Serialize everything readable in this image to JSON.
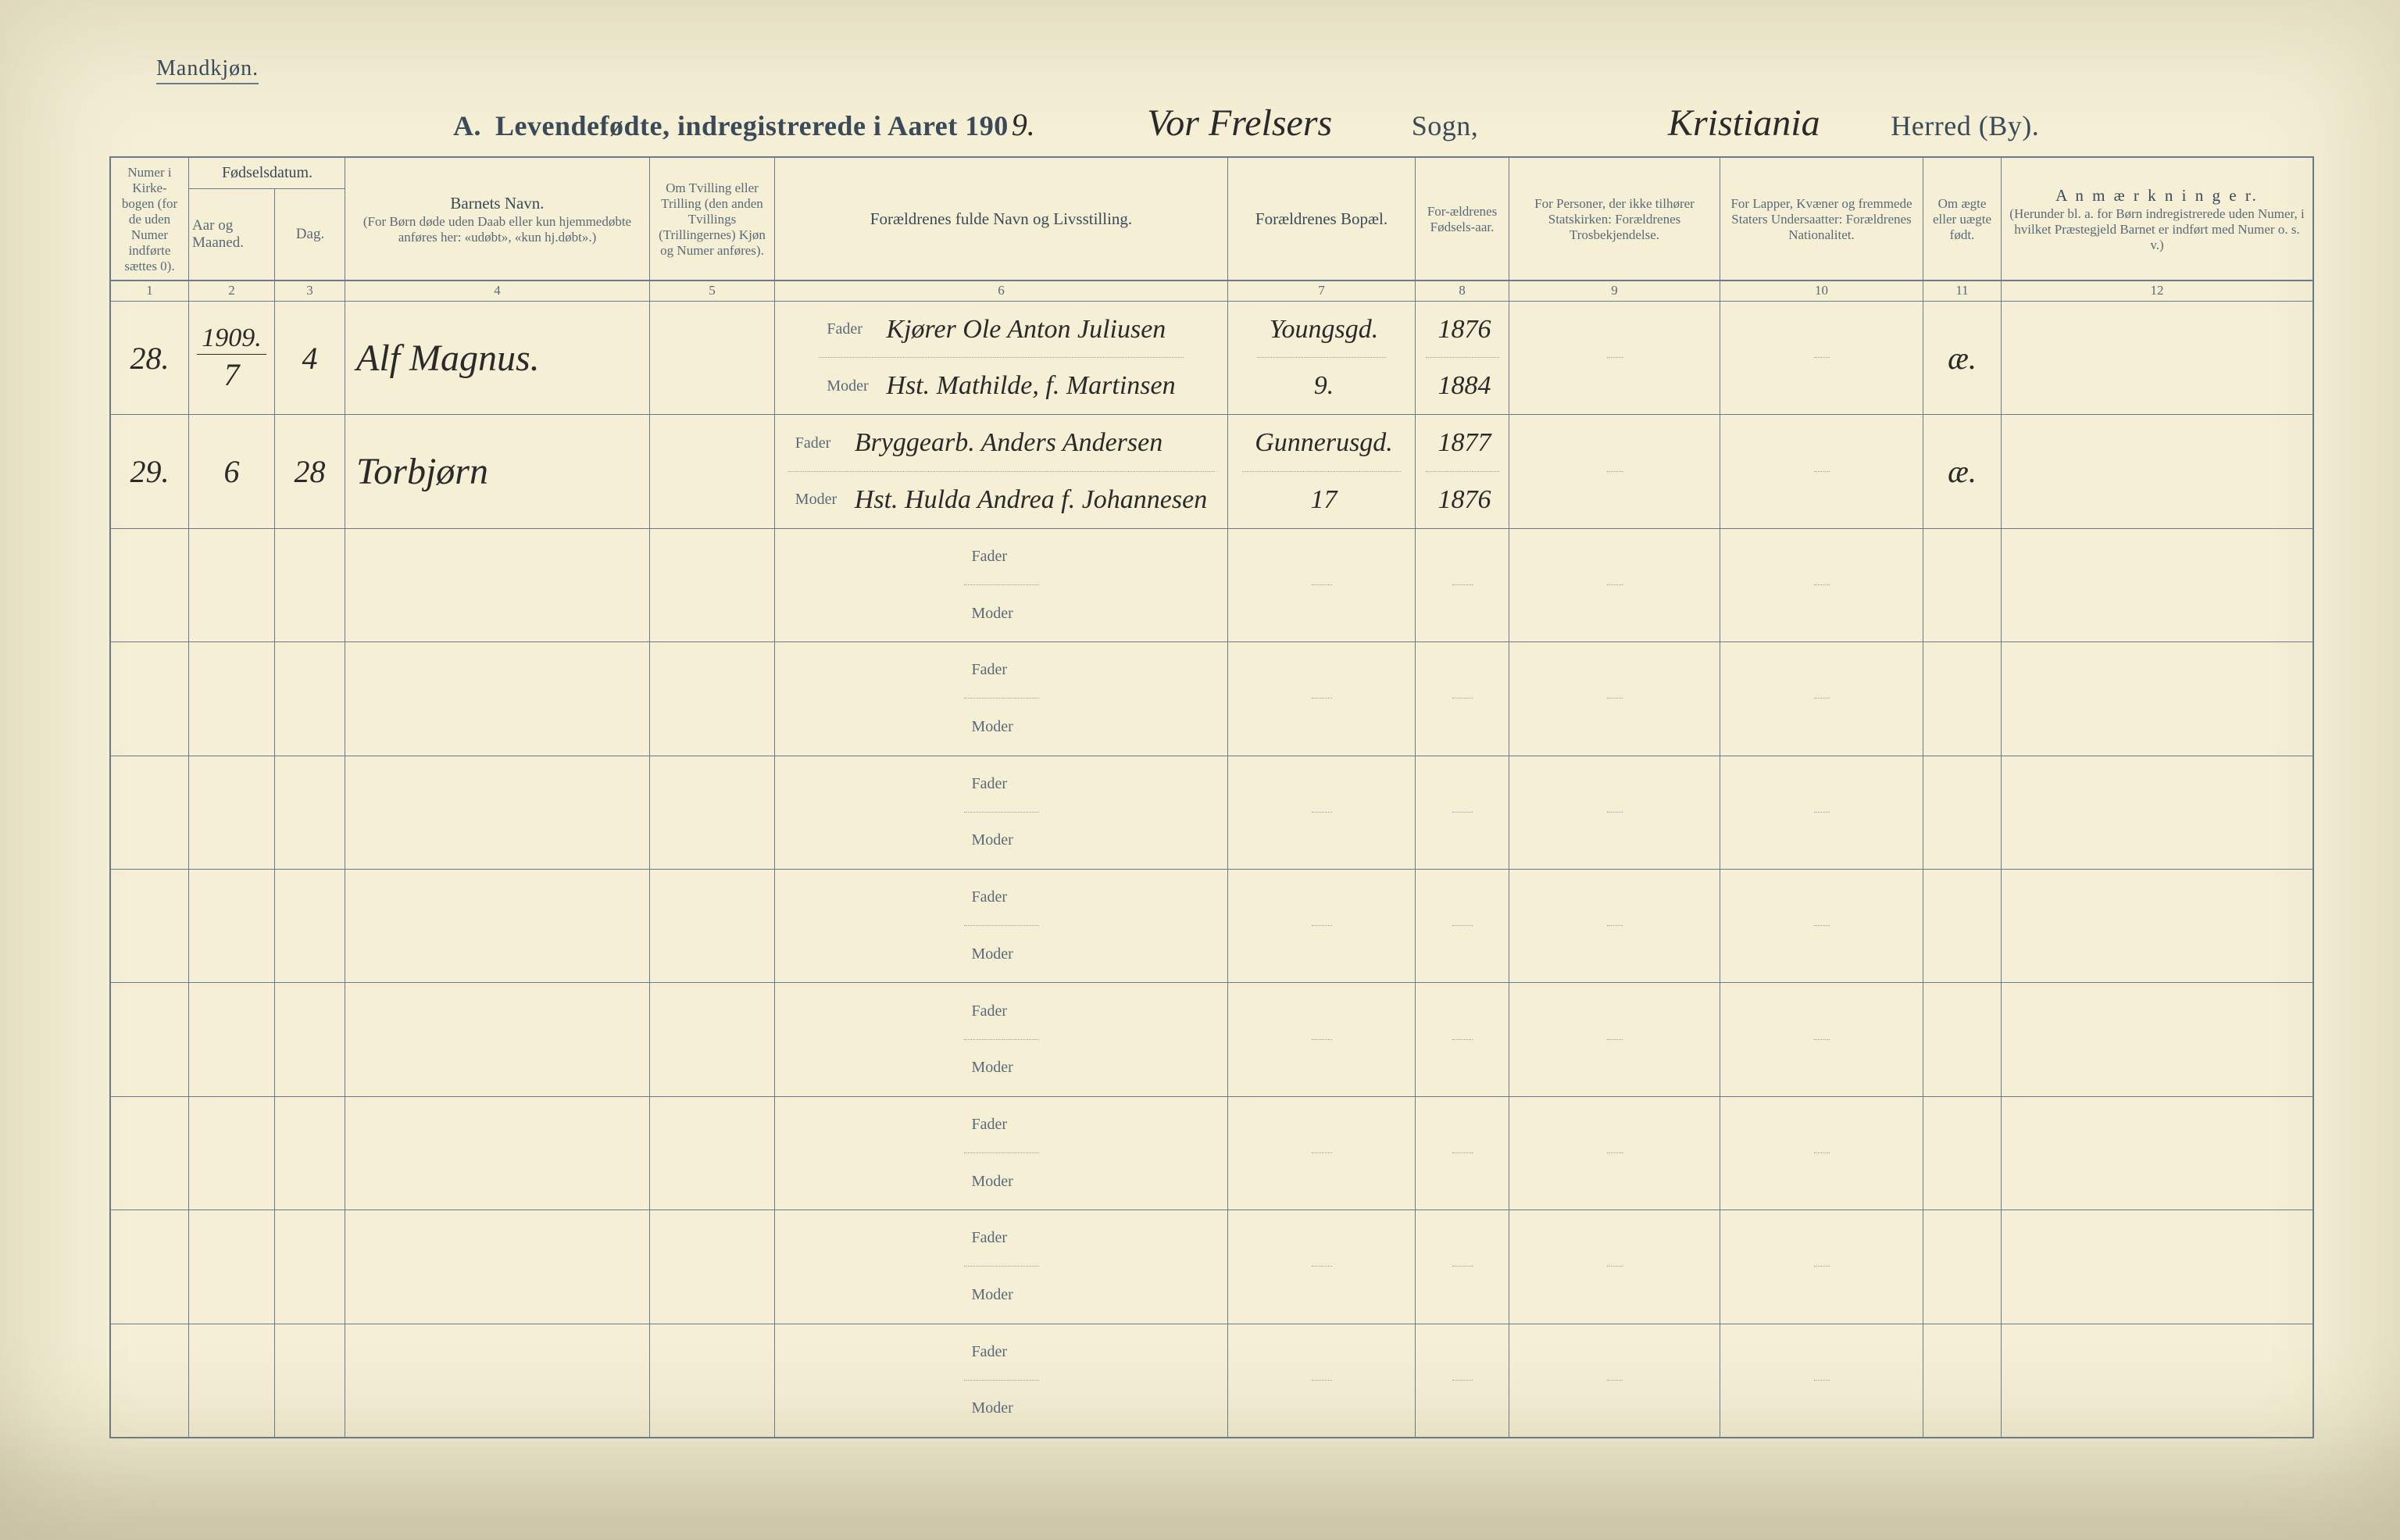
{
  "meta": {
    "gender_label": "Mandkjøn.",
    "title_prefix": "A.",
    "title_main": "Levendefødte, indregistrerede i Aaret 190",
    "year_suffix_printed": "",
    "year_handwritten": "9.",
    "sogn_handwritten": "Vor Frelsers",
    "sogn_label": "Sogn,",
    "herred_handwritten": "Kristiania",
    "herred_label": "Herred (By)."
  },
  "columns": {
    "c1": {
      "num": "1",
      "text": "Numer i Kirke-bogen (for de uden Numer indførte sættes 0)."
    },
    "c2_group": "Fødselsdatum.",
    "c2": {
      "num": "2",
      "text": "Aar og Maaned."
    },
    "c3": {
      "num": "3",
      "text": "Dag."
    },
    "c4": {
      "num": "4",
      "main": "Barnets Navn.",
      "sub": "(For Børn døde uden Daab eller kun hjemmedøbte anføres her: «udøbt», «kun hj.døbt».)"
    },
    "c5": {
      "num": "5",
      "text": "Om Tvilling eller Trilling (den anden Tvillings (Trillingernes) Kjøn og Numer anføres)."
    },
    "c6": {
      "num": "6",
      "text": "Forældrenes fulde Navn og Livsstilling."
    },
    "c7": {
      "num": "7",
      "text": "Forældrenes Bopæl."
    },
    "c8": {
      "num": "8",
      "text": "For-ældrenes Fødsels-aar."
    },
    "c9": {
      "num": "9",
      "text": "For Personer, der ikke tilhører Statskirken: Forældrenes Trosbekjendelse."
    },
    "c10": {
      "num": "10",
      "text": "For Lapper, Kvæner og fremmede Staters Undersaatter: Forældrenes Nationalitet."
    },
    "c11": {
      "num": "11",
      "text": "Om ægte eller uægte født."
    },
    "c12": {
      "num": "12",
      "main": "A n m æ r k n i n g e r.",
      "sub": "(Herunder bl. a. for Børn indregistrerede uden Numer, i hvilket Præstegjeld Barnet er indført med Numer o. s. v.)"
    }
  },
  "labels": {
    "fader": "Fader",
    "moder": "Moder"
  },
  "rows": [
    {
      "num": "28.",
      "year_header": "1909.",
      "month": "7",
      "day": "4",
      "child_name": "Alf Magnus.",
      "twin": "",
      "father": "Kjører Ole Anton Juliusen",
      "mother": "Hst. Mathilde, f. Martinsen",
      "residence_top": "Youngsgd.",
      "residence_bot": "9.",
      "fyear_father": "1876",
      "fyear_mother": "1884",
      "faith": "",
      "nationality": "",
      "legit": "æ.",
      "remark": ""
    },
    {
      "num": "29.",
      "year_header": "",
      "month": "6",
      "day": "28",
      "child_name": "Torbjørn",
      "twin": "",
      "father": "Bryggearb. Anders Andersen",
      "mother": "Hst. Hulda Andrea f. Johannesen",
      "residence_top": "Gunnerusgd.",
      "residence_bot": "17",
      "fyear_father": "1877",
      "fyear_mother": "1876",
      "faith": "",
      "nationality": "",
      "legit": "æ.",
      "remark": ""
    },
    {},
    {},
    {},
    {},
    {},
    {},
    {},
    {}
  ]
}
